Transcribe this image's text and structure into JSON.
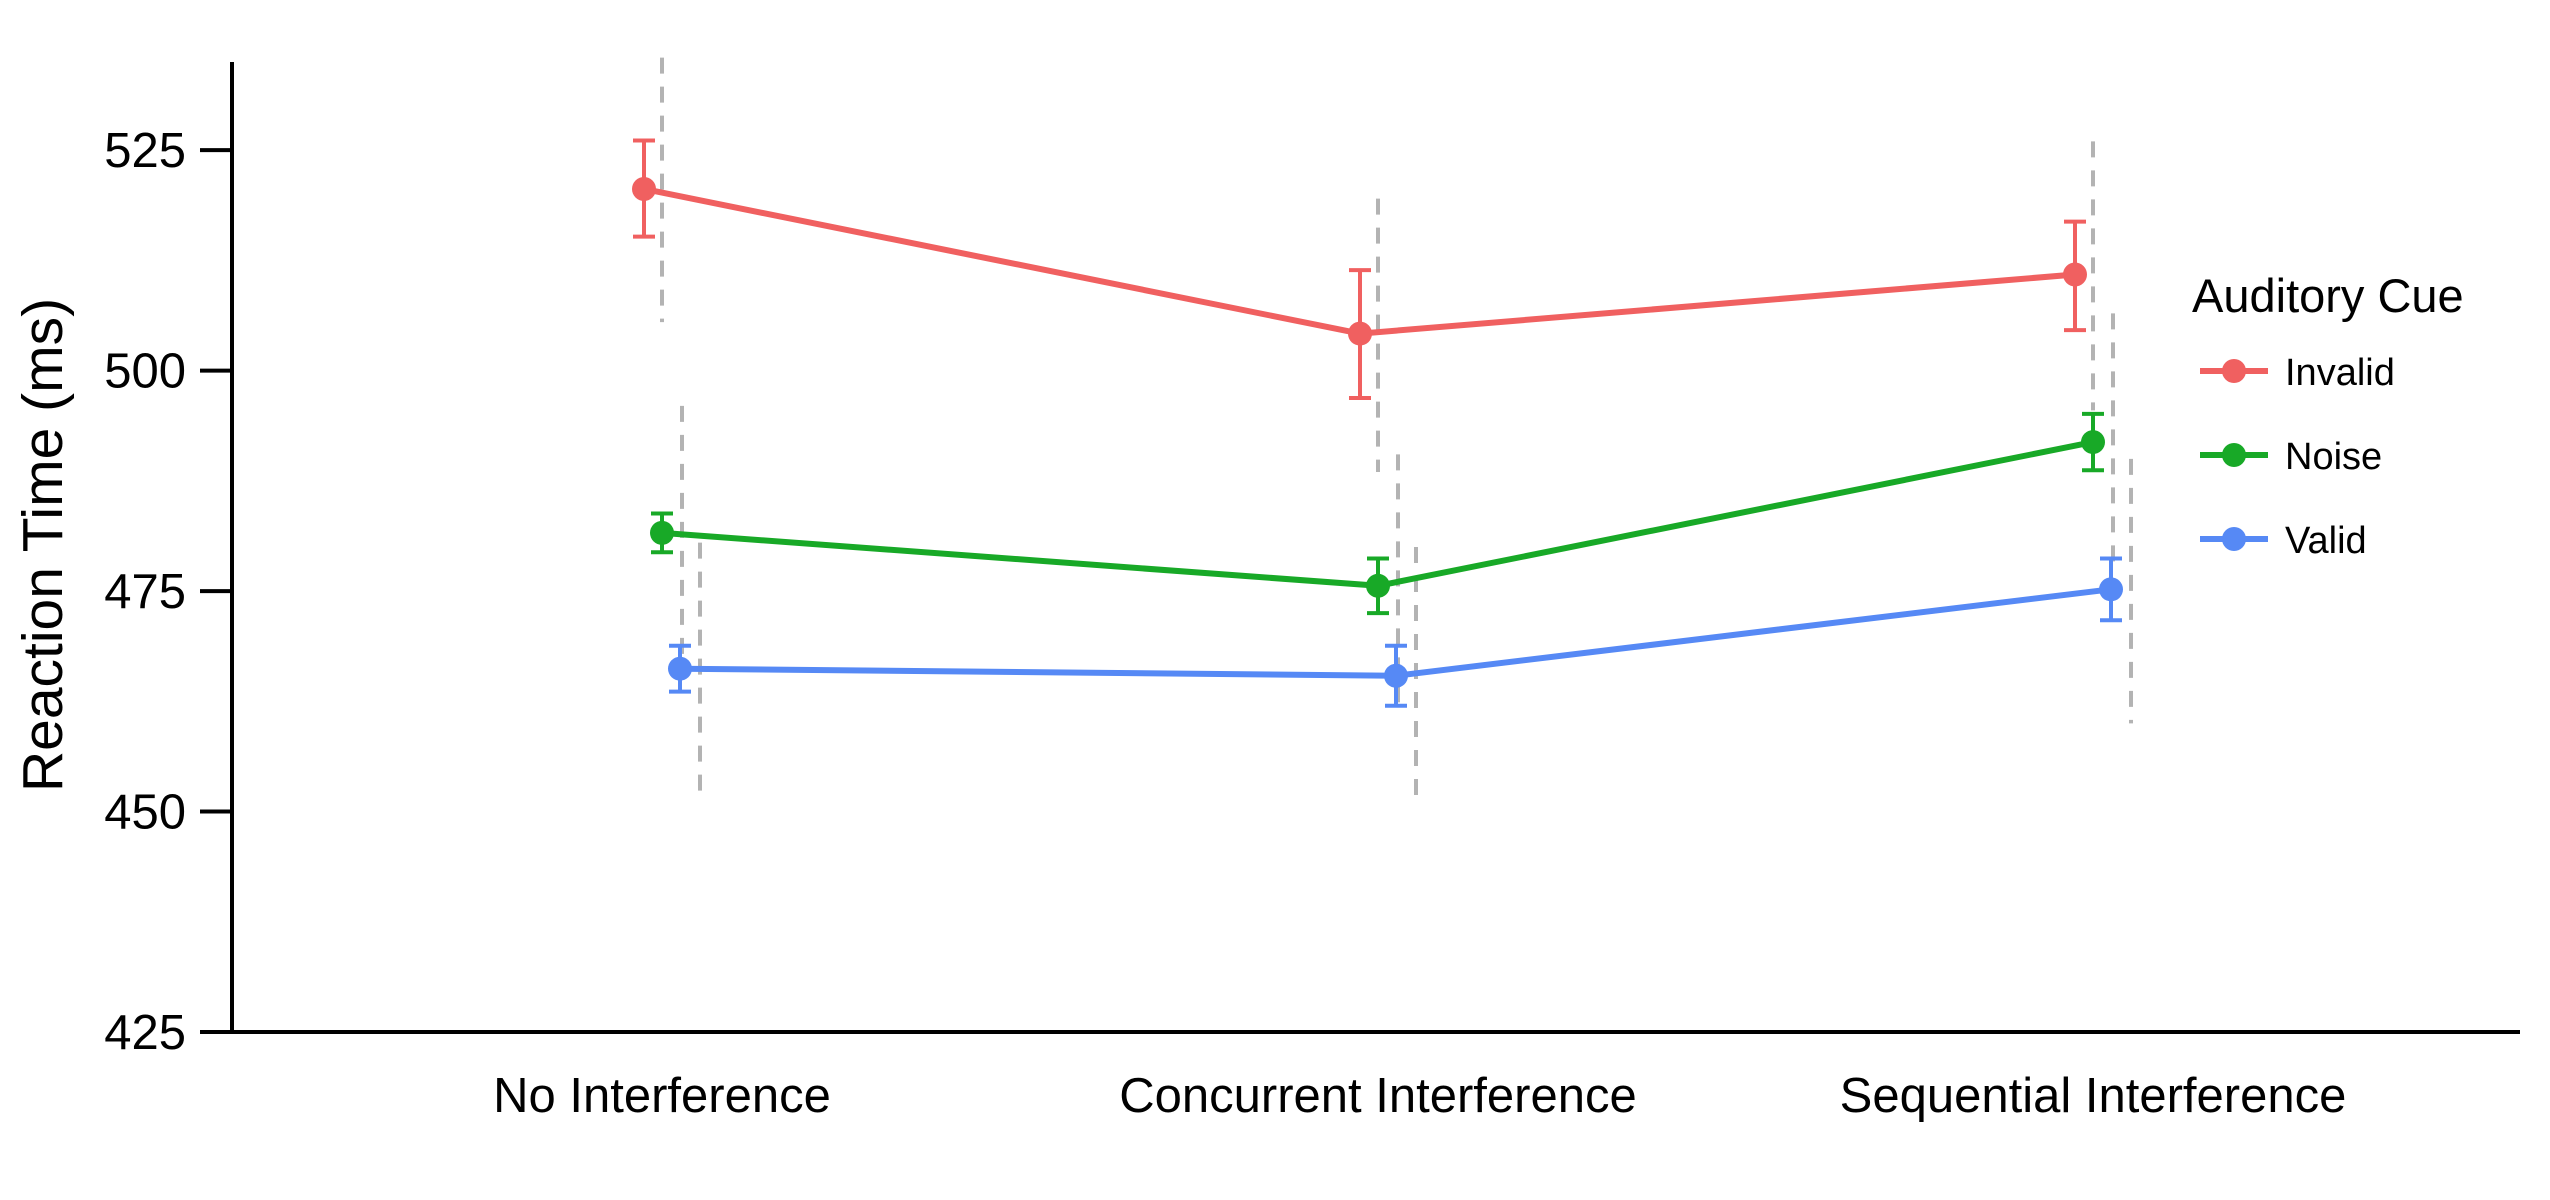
{
  "chart_data": {
    "type": "line",
    "title": "",
    "xlabel": "",
    "ylabel": "Reaction Time (ms)",
    "categories": [
      "No Interference",
      "Concurrent Interference",
      "Sequential Interference"
    ],
    "ylim": [
      425,
      535
    ],
    "yticks": [
      425,
      450,
      475,
      500,
      525
    ],
    "grid": false,
    "legend": {
      "title": "Auditory Cue",
      "placement": "right"
    },
    "series": [
      {
        "name": "Invalid",
        "color": "#F06060",
        "values": [
          520.6,
          504.2,
          510.9
        ],
        "error_low": [
          515.2,
          496.9,
          504.6
        ],
        "error_high": [
          526.1,
          511.4,
          516.9
        ],
        "sd_low": [
          505.5,
          488.5,
          495.5
        ],
        "sd_high": [
          535.5,
          519.5,
          526.0
        ]
      },
      {
        "name": "Noise",
        "color": "#18A927",
        "values": [
          481.6,
          475.6,
          491.9
        ],
        "error_low": [
          479.4,
          472.5,
          488.7
        ],
        "error_high": [
          483.8,
          478.7,
          495.1
        ],
        "sd_low": [
          466.0,
          461.0,
          477.5
        ],
        "sd_high": [
          496.0,
          490.5,
          506.5
        ]
      },
      {
        "name": "Valid",
        "color": "#5689F5",
        "values": [
          466.2,
          465.4,
          475.2
        ],
        "error_low": [
          463.6,
          462.0,
          471.7
        ],
        "error_high": [
          468.8,
          468.8,
          478.7
        ],
        "sd_low": [
          451.5,
          450.5,
          460.0
        ],
        "sd_high": [
          480.5,
          480.0,
          490.0
        ]
      }
    ]
  }
}
